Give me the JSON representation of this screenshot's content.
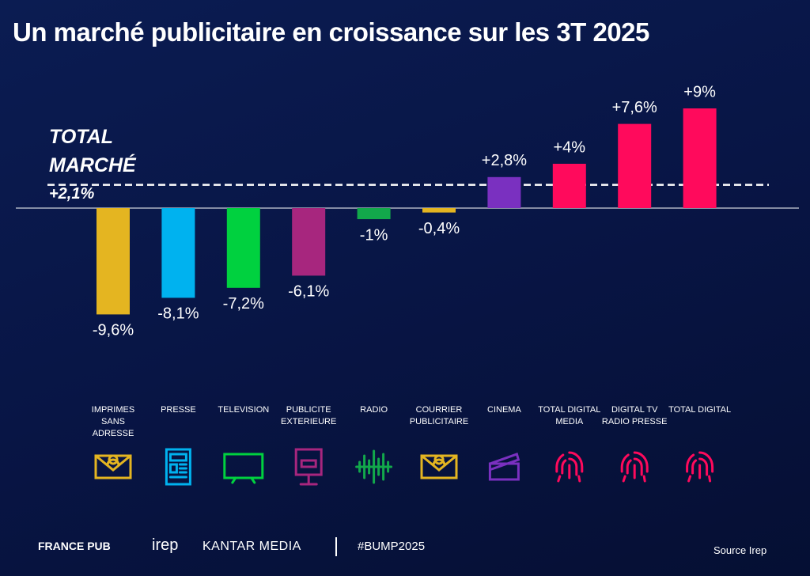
{
  "chart_data": {
    "type": "bar",
    "title": "Un marché publicitaire en croissance sur les 3T 2025",
    "categories": [
      "IMPRIMES SANS ADRESSE",
      "PRESSE",
      "TELEVISION",
      "PUBLICITE EXTERIEURE",
      "RADIO",
      "COURRIER PUBLICITAIRE",
      "CINEMA",
      "TOTAL DIGITAL MEDIA",
      "DIGITAL TV RADIO PRESSE",
      "TOTAL DIGITAL"
    ],
    "values": [
      -9.6,
      -8.1,
      -7.2,
      -6.1,
      -1,
      -0.4,
      2.8,
      4,
      7.6,
      9
    ],
    "value_labels": [
      "-9,6%",
      "-8,1%",
      "-7,2%",
      "-6,1%",
      "-1%",
      "-0,4%",
      "+2,8%",
      "+4%",
      "+7,6%",
      "+9%"
    ],
    "colors": [
      "#e4b521",
      "#00b2ef",
      "#00d13f",
      "#a7267e",
      "#12a84b",
      "#e4b521",
      "#7a30c0",
      "#ff0a5c",
      "#ff0a5c",
      "#ff0a5c"
    ],
    "total": {
      "label": "TOTAL MARCHÉ",
      "value": 2.1,
      "value_label": "+2,1%"
    }
  },
  "footer": {
    "logos": [
      "FRANCE PUB",
      "irep",
      "KANTAR MEDIA"
    ],
    "hashtag": "#BUMP2025",
    "source": "Source Irep"
  }
}
